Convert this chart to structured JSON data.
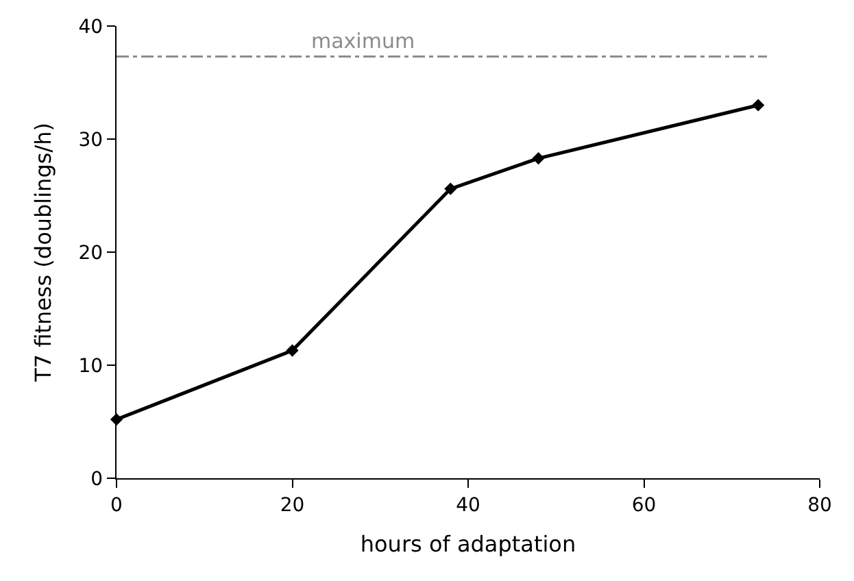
{
  "chart_data": {
    "type": "line",
    "xlabel": "hours of adaptation",
    "ylabel": "T7 fitness (doublings/h)",
    "x": [
      0,
      20,
      38,
      48,
      73
    ],
    "series": [
      {
        "color": "#000000",
        "values": [
          5.2,
          11.3,
          25.6,
          28.3,
          33.0
        ]
      }
    ],
    "xlim": [
      0,
      80
    ],
    "xticks": [
      0,
      20,
      40,
      60,
      80
    ],
    "ylim": [
      0,
      40
    ],
    "yticks": [
      0,
      10,
      20,
      30,
      40
    ],
    "ref_lines": [
      {
        "axis": "y",
        "value": 37.3,
        "label": "maximum",
        "color": "#8c8c8c",
        "line_style": "dashdot"
      }
    ],
    "legend": false,
    "marker": "diamond",
    "line_style": "solid"
  }
}
